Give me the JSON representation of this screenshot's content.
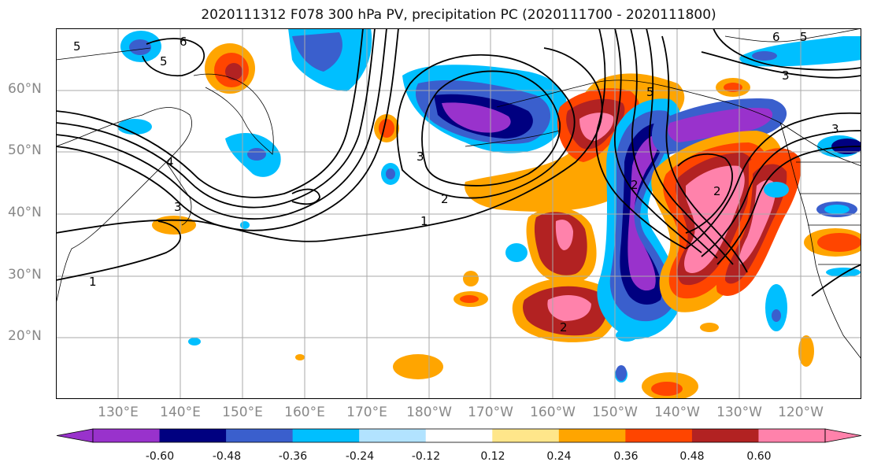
{
  "title": "2020111312 F078 300 hPa PV, precipitation PC (2020111700 - 2020111800)",
  "map": {
    "lat_labels": [
      "60°N",
      "50°N",
      "40°N",
      "30°N",
      "20°N"
    ],
    "lon_labels": [
      "130°E",
      "140°E",
      "150°E",
      "160°E",
      "170°E",
      "180°W",
      "170°W",
      "160°W",
      "150°W",
      "140°W",
      "130°W",
      "120°W"
    ],
    "pv_contour_labels": [
      "5",
      "6",
      "5",
      "4",
      "3",
      "2",
      "1",
      "1",
      "2",
      "3",
      "5",
      "6",
      "5",
      "2",
      "2",
      "3",
      "3"
    ]
  },
  "colorbar": {
    "colors": [
      "#9932cc",
      "#000080",
      "#3a5fcd",
      "#00bfff",
      "#b2e3ff",
      "#ffffff",
      "#ffffff",
      "#ffe68a",
      "#ffa500",
      "#ff4500",
      "#b22222",
      "#ff82ab"
    ],
    "tick_labels": [
      "-0.60",
      "-0.48",
      "-0.36",
      "-0.24",
      "-0.12",
      "0.12",
      "0.24",
      "0.36",
      "0.48",
      "0.60"
    ]
  }
}
